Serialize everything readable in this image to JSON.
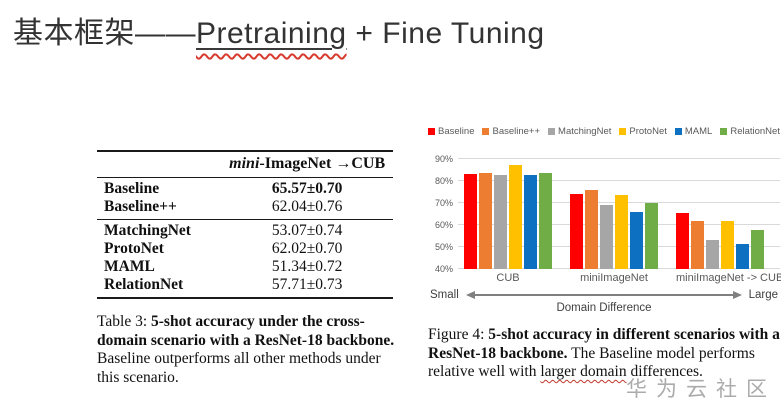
{
  "title": {
    "prefix": "基本框架——",
    "underlined": "Pretraining",
    "suffix": " + Fine Tuning"
  },
  "table": {
    "header": {
      "italic": "mini",
      "rest": "-ImageNet →CUB"
    },
    "groups": [
      {
        "rows": [
          {
            "method": "Baseline",
            "value": "65.57±0.70",
            "bold": true
          },
          {
            "method": "Baseline++",
            "value": "62.04±0.76",
            "bold": false
          }
        ]
      },
      {
        "rows": [
          {
            "method": "MatchingNet",
            "value": "53.07±0.74",
            "bold": false
          },
          {
            "method": "ProtoNet",
            "value": "62.02±0.70",
            "bold": false
          },
          {
            "method": "MAML",
            "value": "51.34±0.72",
            "bold": false
          },
          {
            "method": "RelationNet",
            "value": "57.71±0.73",
            "bold": false
          }
        ]
      }
    ],
    "caption": {
      "prefix": "Table 3: ",
      "bold": "5-shot accuracy under the cross-domain scenario with a ResNet-18 backbone.",
      "rest": " Baseline outperforms all other methods under this scenario."
    }
  },
  "chart_data": {
    "type": "bar",
    "categories": [
      "CUB",
      "miniImageNet",
      "miniImageNet -> CUB"
    ],
    "series": [
      {
        "name": "Baseline",
        "color": "#fe0000",
        "values": [
          83.0,
          74.3,
          65.6
        ]
      },
      {
        "name": "Baseline++",
        "color": "#ed7d31",
        "values": [
          83.8,
          75.7,
          62.0
        ]
      },
      {
        "name": "MatchingNet",
        "color": "#a6a6a6",
        "values": [
          82.9,
          68.9,
          53.1
        ]
      },
      {
        "name": "ProtoNet",
        "color": "#ffc000",
        "values": [
          87.5,
          73.7,
          62.0
        ]
      },
      {
        "name": "MAML",
        "color": "#0e70c1",
        "values": [
          82.9,
          65.7,
          51.3
        ]
      },
      {
        "name": "RelationNet",
        "color": "#70ad47",
        "values": [
          83.8,
          69.8,
          57.7
        ]
      }
    ],
    "ylim": [
      40,
      90
    ],
    "yticks": [
      "40%",
      "50%",
      "60%",
      "70%",
      "80%",
      "90%"
    ],
    "grid": true,
    "legend_position": "top",
    "xaxis_annotation": {
      "left": "Small",
      "center": "Domain  Difference",
      "right": "Large"
    }
  },
  "figure_caption": {
    "prefix": "Figure 4: ",
    "bold": "5-shot accuracy in different scenarios with a ResNet-18 backbone.",
    "rest1": " The Baseline model performs relative well with ",
    "wavy": "larger domain",
    "rest2": " differences."
  },
  "watermark": "华为云社区"
}
